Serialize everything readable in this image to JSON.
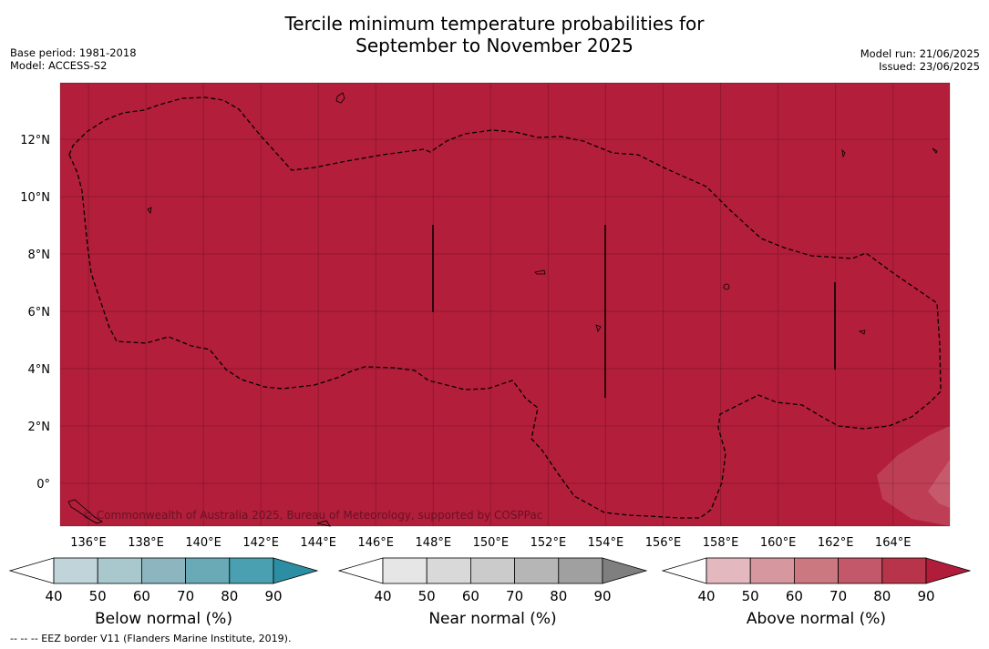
{
  "header": {
    "title_line1": "Tercile minimum temperature probabilities for",
    "title_line2": "September to November 2025",
    "base_period": "Base period: 1981-2018",
    "model": "Model: ACCESS-S2",
    "model_run": "Model run: 21/06/2025",
    "issued": "Issued: 23/06/2025"
  },
  "map": {
    "background_color": "#b31e3a",
    "lat_labels": [
      "12°N",
      "10°N",
      "8°N",
      "6°N",
      "4°N",
      "2°N",
      "0°"
    ],
    "lon_labels": [
      "136°E",
      "138°E",
      "140°E",
      "142°E",
      "144°E",
      "146°E",
      "148°E",
      "150°E",
      "152°E",
      "154°E",
      "156°E",
      "158°E",
      "160°E",
      "162°E",
      "164°E"
    ],
    "copyright": "© Commonwealth of Australia 2025, Bureau of Meteorology, supported by COSPPac"
  },
  "colorbars": [
    {
      "label": "Below normal (%)",
      "ticks": [
        "40",
        "50",
        "60",
        "70",
        "80",
        "90"
      ],
      "colors": [
        "#ffffff",
        "#c0d4da",
        "#a9c8ce",
        "#8cb5bf",
        "#6aa9b6",
        "#4aa0b0",
        "#2c8ea3"
      ]
    },
    {
      "label": "Near normal (%)",
      "ticks": [
        "40",
        "50",
        "60",
        "70",
        "80",
        "90"
      ],
      "colors": [
        "#ffffff",
        "#e6e6e6",
        "#d9d9d9",
        "#cbcbcb",
        "#b6b6b6",
        "#a0a0a0",
        "#7f7f7f"
      ]
    },
    {
      "label": "Above normal (%)",
      "ticks": [
        "40",
        "50",
        "60",
        "70",
        "80",
        "90"
      ],
      "colors": [
        "#ffffff",
        "#e3b9bf",
        "#d6979f",
        "#cb7880",
        "#c25869",
        "#b8344a",
        "#b11c3a"
      ]
    }
  ],
  "footer": {
    "eez_note": "--  --  -- EEZ border V11 (Flanders Marine Institute, 2019)."
  }
}
